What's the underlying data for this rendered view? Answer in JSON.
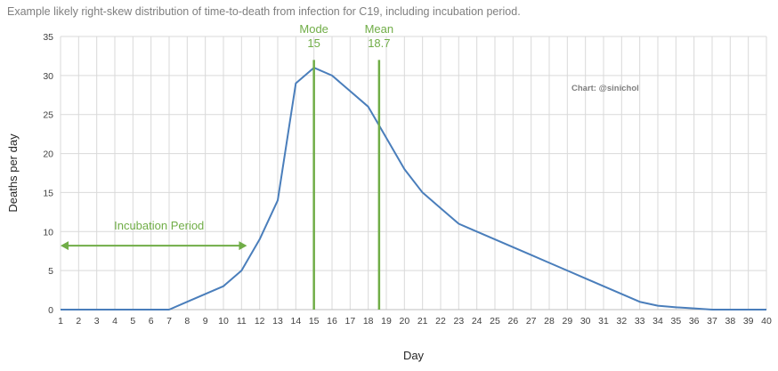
{
  "chart_data": {
    "type": "line",
    "title": "Example likely right-skew distribution of time-to-death from infection for C19, including incubation period.",
    "xlabel": "Day",
    "ylabel": "Deaths per day",
    "xlim": [
      1,
      40
    ],
    "ylim": [
      0,
      35
    ],
    "x_ticks": [
      1,
      2,
      3,
      4,
      5,
      6,
      7,
      8,
      9,
      10,
      11,
      12,
      13,
      14,
      15,
      16,
      17,
      18,
      19,
      20,
      21,
      22,
      23,
      24,
      25,
      26,
      27,
      28,
      29,
      30,
      31,
      32,
      33,
      34,
      35,
      36,
      37,
      38,
      39,
      40
    ],
    "y_ticks": [
      0,
      5,
      10,
      15,
      20,
      25,
      30,
      35
    ],
    "grid": true,
    "legend": "none",
    "series": [
      {
        "color": "#4a7ebb",
        "x": [
          1,
          2,
          3,
          4,
          5,
          6,
          7,
          8,
          9,
          10,
          11,
          12,
          13,
          14,
          15,
          16,
          17,
          18,
          19,
          20,
          21,
          22,
          23,
          24,
          25,
          26,
          27,
          28,
          29,
          30,
          31,
          32,
          33,
          34,
          35,
          36,
          37,
          38,
          39,
          40
        ],
        "y": [
          0,
          0,
          0,
          0,
          0,
          0,
          0,
          1,
          2,
          3,
          5,
          9,
          14,
          29,
          31,
          30,
          28,
          26,
          22,
          18,
          15,
          13,
          11,
          10,
          9,
          8,
          7,
          6,
          5,
          4,
          3,
          2,
          1,
          0.5,
          0.3,
          0.15,
          0,
          0,
          0,
          0
        ]
      }
    ],
    "annotations": {
      "mode": {
        "label": "Mode",
        "value_text": "15",
        "x": 15,
        "y_top": 32,
        "color": "#70ad47"
      },
      "mean": {
        "label": "Mean",
        "value_text": "18.7",
        "x": 18.6,
        "y_top": 32,
        "color": "#70ad47"
      },
      "incubation": {
        "label": "Incubation Period",
        "x_start": 1,
        "x_end": 11.3,
        "y": 8.2,
        "color": "#70ad47"
      },
      "credit": "Chart: @sinichol"
    }
  }
}
